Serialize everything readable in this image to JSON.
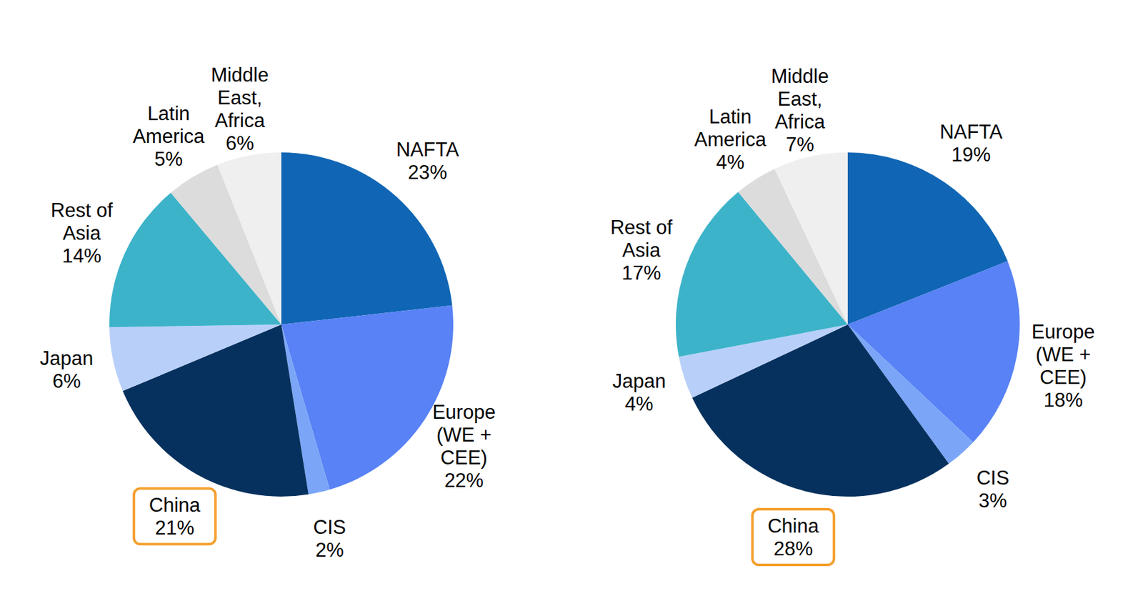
{
  "chart_data": [
    {
      "type": "pie",
      "categories": [
        "NAFTA",
        "Europe (WE + CEE)",
        "CIS",
        "China",
        "Japan",
        "Rest of Asia",
        "Latin America",
        "Middle East, Africa"
      ],
      "values": [
        23,
        22,
        2,
        21,
        6,
        14,
        5,
        6
      ],
      "value_labels": [
        "23%",
        "22%",
        "2%",
        "21%",
        "6%",
        "14%",
        "5%",
        "6%"
      ],
      "data_labels": true,
      "colors": [
        "#1066b4",
        "#5882f5",
        "#7ba6f7",
        "#06315e",
        "#b8d0f9",
        "#3db3c9",
        "#dcdcdc",
        "#efefef"
      ]
    },
    {
      "type": "pie",
      "categories": [
        "NAFTA",
        "Europe (WE + CEE)",
        "CIS",
        "China",
        "Japan",
        "Rest of Asia",
        "Latin America",
        "Middle East, Africa"
      ],
      "values": [
        19,
        18,
        3,
        28,
        4,
        17,
        4,
        7
      ],
      "value_labels": [
        "19%",
        "18%",
        "3%",
        "28%",
        "4%",
        "17%",
        "4%",
        "7%"
      ],
      "data_labels": true,
      "colors": [
        "#1066b4",
        "#5882f5",
        "#7ba6f7",
        "#06315e",
        "#b8d0f9",
        "#3db3c9",
        "#dcdcdc",
        "#efefef"
      ]
    }
  ]
}
